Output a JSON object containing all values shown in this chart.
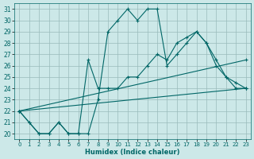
{
  "xlabel": "Humidex (Indice chaleur)",
  "xlim": [
    -0.5,
    23.5
  ],
  "ylim": [
    19.5,
    31.5
  ],
  "yticks": [
    20,
    21,
    22,
    23,
    24,
    25,
    26,
    27,
    28,
    29,
    30,
    31
  ],
  "xticks": [
    0,
    1,
    2,
    3,
    4,
    5,
    6,
    7,
    8,
    9,
    10,
    11,
    12,
    13,
    14,
    15,
    16,
    17,
    18,
    19,
    20,
    21,
    22,
    23
  ],
  "bg_color": "#cce8e8",
  "line_color": "#006666",
  "grid_color": "#99bbbb",
  "lines": [
    {
      "x": [
        0,
        1,
        2,
        3,
        4,
        5,
        6,
        7,
        8,
        9,
        10,
        11,
        12,
        13,
        14,
        15,
        16,
        17,
        18,
        19,
        20,
        21,
        22,
        23
      ],
      "y": [
        22,
        21,
        20,
        20,
        21,
        20,
        20,
        20,
        23,
        29,
        30,
        31,
        30,
        31,
        31,
        26,
        27,
        28,
        29,
        28,
        26,
        25,
        24,
        24
      ]
    },
    {
      "x": [
        0,
        1,
        2,
        3,
        4,
        5,
        6,
        7,
        8,
        9,
        10,
        11,
        12,
        13,
        14,
        15,
        16,
        17,
        18,
        19,
        20,
        21,
        22,
        23
      ],
      "y": [
        22,
        21,
        20,
        20,
        21,
        20,
        20,
        26.5,
        24,
        24,
        24,
        25,
        25,
        26,
        27,
        26.5,
        28,
        28.5,
        29,
        28,
        26.5,
        25,
        24.5,
        24
      ]
    },
    {
      "x": [
        0,
        23
      ],
      "y": [
        22,
        26.5
      ]
    },
    {
      "x": [
        0,
        23
      ],
      "y": [
        22,
        24
      ]
    }
  ],
  "marker": "+"
}
